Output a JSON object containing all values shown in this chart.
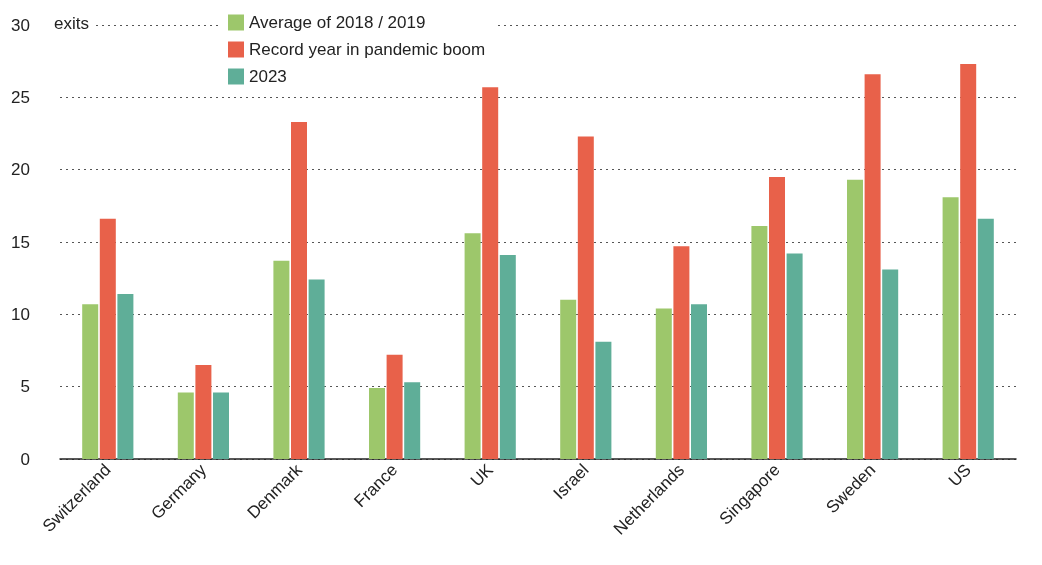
{
  "chart_data": {
    "type": "bar",
    "ylabel": "exits",
    "categories": [
      "Switzerland",
      "Germany",
      "Denmark",
      "France",
      "UK",
      "Israel",
      "Netherlands",
      "Singapore",
      "Sweden",
      "US"
    ],
    "series": [
      {
        "name": "Average of 2018 / 2019",
        "color": "#9dc76b",
        "values": [
          10.7,
          4.6,
          13.7,
          4.9,
          15.6,
          11.0,
          10.4,
          16.1,
          19.3,
          18.1
        ]
      },
      {
        "name": "Record year in pandemic boom",
        "color": "#e8614a",
        "values": [
          16.6,
          6.5,
          23.3,
          7.2,
          25.7,
          22.3,
          14.7,
          19.5,
          26.6,
          27.3
        ]
      },
      {
        "name": "2023",
        "color": "#5fae98",
        "values": [
          11.4,
          4.6,
          12.4,
          5.3,
          14.1,
          8.1,
          10.7,
          14.2,
          13.1,
          16.6
        ]
      }
    ],
    "ylim": [
      0,
      30
    ],
    "yticks": [
      0,
      5,
      10,
      15,
      20,
      25,
      30
    ],
    "grid": "y",
    "legend": "top left"
  }
}
